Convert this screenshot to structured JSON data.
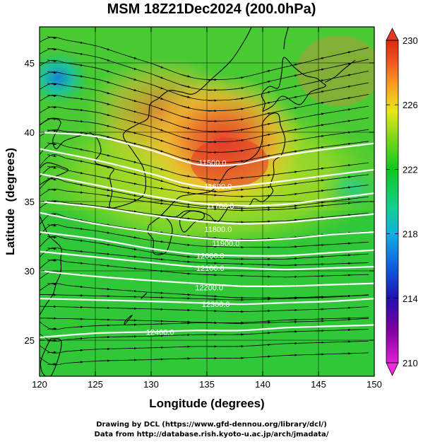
{
  "title": "MSM 18Z21Dec2024 (200.0hPa)",
  "credits": [
    "Drawing by DCL (https://www.gfd-dennou.org/library/dcl/)",
    "Data from http://database.rish.kyoto-u.ac.jp/arch/jmadata/"
  ],
  "chart_data": {
    "type": "heatmap",
    "title": "MSM 18Z21Dec2024 (200.0hPa)",
    "xlabel": "Longitude (degrees)",
    "ylabel": "Latitude  (degrees)",
    "xlim": [
      120,
      150
    ],
    "ylim": [
      22.4,
      47.6
    ],
    "x_ticks": [
      120,
      125,
      130,
      135,
      140,
      145,
      150
    ],
    "y_ticks": [
      25,
      30,
      35,
      40,
      45
    ],
    "colorbar": {
      "min": 210,
      "max": 230,
      "ticks": [
        210,
        214,
        218,
        222,
        226,
        230
      ]
    },
    "temperature_field_approx": [
      {
        "lon": 137,
        "lat": 40,
        "value": 228.5
      },
      {
        "lon": 131,
        "lat": 42,
        "value": 227.5
      },
      {
        "lon": 140,
        "lat": 36,
        "value": 226
      },
      {
        "lon": 124,
        "lat": 38,
        "value": 223.5
      },
      {
        "lon": 148,
        "lat": 38,
        "value": 222.5
      },
      {
        "lon": 122,
        "lat": 44,
        "value": 219
      }
    ],
    "contour_labels": [
      {
        "label": "11500.0",
        "lon": 135.5,
        "lat": 37.8
      },
      {
        "label": "11600.0",
        "lon": 136,
        "lat": 36.1
      },
      {
        "label": "11700.0",
        "lon": 136.2,
        "lat": 34.7
      },
      {
        "label": "11800.0",
        "lon": 136,
        "lat": 33.0
      },
      {
        "label": "11900.0",
        "lon": 136.7,
        "lat": 32.0
      },
      {
        "label": "12000.0",
        "lon": 135.3,
        "lat": 31.1
      },
      {
        "label": "12100.0",
        "lon": 135.3,
        "lat": 30.2
      },
      {
        "label": "12200.0",
        "lon": 135.2,
        "lat": 28.8
      },
      {
        "label": "12300.0",
        "lon": 135.8,
        "lat": 27.6
      },
      {
        "label": "12400.0",
        "lon": 130.8,
        "lat": 25.6
      }
    ],
    "contours": [
      {
        "value": 11500,
        "points": [
          [
            120,
            40.0
          ],
          [
            125,
            39.7
          ],
          [
            130,
            38.7
          ],
          [
            133,
            37.9
          ],
          [
            135,
            37.6
          ],
          [
            138,
            37.7
          ],
          [
            141,
            38.2
          ],
          [
            145,
            38.7
          ],
          [
            150,
            39.2
          ]
        ]
      },
      {
        "value": 11600,
        "points": [
          [
            120,
            38.8
          ],
          [
            125,
            38.0
          ],
          [
            130,
            37.0
          ],
          [
            133,
            36.3
          ],
          [
            136,
            36.0
          ],
          [
            140,
            36.3
          ],
          [
            145,
            36.8
          ],
          [
            150,
            37.3
          ]
        ]
      },
      {
        "value": 11700,
        "points": [
          [
            120,
            37.0
          ],
          [
            125,
            36.2
          ],
          [
            130,
            35.4
          ],
          [
            134,
            34.9
          ],
          [
            138,
            34.7
          ],
          [
            142,
            34.8
          ],
          [
            146,
            35.2
          ],
          [
            150,
            35.6
          ]
        ]
      },
      {
        "value": 11800,
        "points": [
          [
            120,
            35.0
          ],
          [
            125,
            34.6
          ],
          [
            130,
            34.0
          ],
          [
            134,
            33.6
          ],
          [
            138,
            33.4
          ],
          [
            142,
            33.5
          ],
          [
            146,
            33.8
          ],
          [
            150,
            34.1
          ]
        ]
      },
      {
        "value": 11900,
        "points": [
          [
            120,
            34.2
          ],
          [
            125,
            33.4
          ],
          [
            130,
            32.8
          ],
          [
            134,
            32.4
          ],
          [
            138,
            32.2
          ],
          [
            142,
            32.3
          ],
          [
            146,
            32.6
          ],
          [
            150,
            32.8
          ]
        ]
      },
      {
        "value": 12000,
        "points": [
          [
            120,
            32.8
          ],
          [
            125,
            32.3
          ],
          [
            130,
            31.6
          ],
          [
            134,
            31.2
          ],
          [
            138,
            31.1
          ],
          [
            142,
            31.1
          ],
          [
            146,
            31.3
          ],
          [
            150,
            31.5
          ]
        ]
      },
      {
        "value": 12100,
        "points": [
          [
            120,
            31.4
          ],
          [
            125,
            31.0
          ],
          [
            130,
            30.6
          ],
          [
            134,
            30.3
          ],
          [
            138,
            30.2
          ],
          [
            142,
            30.1
          ],
          [
            146,
            30.2
          ],
          [
            150,
            30.3
          ]
        ]
      },
      {
        "value": 12200,
        "points": [
          [
            120,
            30.0
          ],
          [
            125,
            29.6
          ],
          [
            130,
            29.3
          ],
          [
            134,
            29.1
          ],
          [
            138,
            28.9
          ],
          [
            142,
            28.9
          ],
          [
            146,
            29.0
          ],
          [
            150,
            29.1
          ]
        ]
      },
      {
        "value": 12300,
        "points": [
          [
            120,
            28.0
          ],
          [
            125,
            27.9
          ],
          [
            130,
            27.8
          ],
          [
            134,
            27.7
          ],
          [
            138,
            27.6
          ],
          [
            142,
            27.7
          ],
          [
            146,
            27.8
          ],
          [
            150,
            28.0
          ]
        ]
      },
      {
        "value": 12400,
        "points": [
          [
            120,
            25.2
          ],
          [
            125,
            25.5
          ],
          [
            130,
            25.6
          ],
          [
            134,
            25.7
          ],
          [
            138,
            25.7
          ],
          [
            142,
            25.9
          ],
          [
            146,
            26.0
          ],
          [
            150,
            26.1
          ]
        ]
      }
    ],
    "coastlines": [
      {
        "name": "honshu",
        "points": [
          [
            130.9,
            34.0
          ],
          [
            131.5,
            34.5
          ],
          [
            132.5,
            35.3
          ],
          [
            133.5,
            35.5
          ],
          [
            135.2,
            35.7
          ],
          [
            136.0,
            36.2
          ],
          [
            136.8,
            37.2
          ],
          [
            137.4,
            37.5
          ],
          [
            138.5,
            37.9
          ],
          [
            139.4,
            38.4
          ],
          [
            139.9,
            39.2
          ],
          [
            140.0,
            40.1
          ],
          [
            140.0,
            40.7
          ],
          [
            140.7,
            41.3
          ],
          [
            141.4,
            41.3
          ],
          [
            141.6,
            40.5
          ],
          [
            142.0,
            39.5
          ],
          [
            141.7,
            38.4
          ],
          [
            141.0,
            37.9
          ],
          [
            141.0,
            37.0
          ],
          [
            140.7,
            36.2
          ],
          [
            140.9,
            35.7
          ],
          [
            140.0,
            35.0
          ],
          [
            139.2,
            35.2
          ],
          [
            138.7,
            34.7
          ],
          [
            137.0,
            34.6
          ],
          [
            136.7,
            34.3
          ],
          [
            135.9,
            33.5
          ],
          [
            135.2,
            34.0
          ],
          [
            134.0,
            34.3
          ],
          [
            133.0,
            34.3
          ],
          [
            132.2,
            33.9
          ],
          [
            130.9,
            34.0
          ]
        ]
      },
      {
        "name": "hokkaido",
        "points": [
          [
            140.0,
            41.5
          ],
          [
            140.2,
            42.1
          ],
          [
            139.9,
            42.7
          ],
          [
            140.6,
            43.3
          ],
          [
            141.4,
            43.2
          ],
          [
            141.7,
            44.3
          ],
          [
            141.9,
            45.4
          ],
          [
            142.8,
            44.7
          ],
          [
            143.8,
            44.1
          ],
          [
            144.8,
            43.9
          ],
          [
            145.3,
            43.6
          ],
          [
            145.6,
            43.3
          ],
          [
            144.3,
            42.9
          ],
          [
            143.3,
            42.0
          ],
          [
            141.8,
            42.6
          ],
          [
            140.9,
            41.9
          ],
          [
            140.0,
            41.5
          ]
        ]
      },
      {
        "name": "kyushu",
        "points": [
          [
            129.8,
            33.3
          ],
          [
            130.9,
            33.9
          ],
          [
            131.6,
            33.6
          ],
          [
            131.9,
            32.9
          ],
          [
            131.5,
            31.6
          ],
          [
            131.0,
            31.2
          ],
          [
            130.2,
            31.3
          ],
          [
            130.2,
            32.2
          ],
          [
            129.7,
            32.8
          ],
          [
            129.8,
            33.3
          ]
        ]
      },
      {
        "name": "shikoku",
        "points": [
          [
            132.6,
            33.8
          ],
          [
            133.5,
            34.3
          ],
          [
            134.6,
            34.2
          ],
          [
            134.7,
            33.8
          ],
          [
            133.9,
            33.5
          ],
          [
            133.0,
            32.8
          ],
          [
            132.6,
            33.3
          ],
          [
            132.6,
            33.8
          ]
        ]
      },
      {
        "name": "korea",
        "points": [
          [
            124.5,
            40.0
          ],
          [
            125.2,
            39.5
          ],
          [
            125.5,
            38.6
          ],
          [
            125.0,
            37.8
          ],
          [
            126.6,
            37.4
          ],
          [
            126.3,
            36.8
          ],
          [
            126.5,
            35.7
          ],
          [
            126.3,
            34.6
          ],
          [
            127.4,
            34.7
          ],
          [
            128.7,
            35.1
          ],
          [
            129.4,
            35.6
          ],
          [
            129.5,
            36.7
          ],
          [
            129.2,
            37.6
          ],
          [
            128.4,
            38.6
          ],
          [
            127.5,
            39.8
          ],
          [
            128.6,
            40.5
          ],
          [
            129.7,
            41.0
          ],
          [
            129.9,
            42.0
          ],
          [
            130.6,
            42.4
          ]
        ]
      },
      {
        "name": "asia-mainland",
        "points": [
          [
            130.6,
            42.4
          ],
          [
            131.6,
            43.0
          ],
          [
            132.7,
            42.9
          ],
          [
            133.9,
            42.8
          ],
          [
            135.5,
            43.9
          ],
          [
            137.2,
            45.2
          ],
          [
            138.5,
            46.8
          ],
          [
            139.0,
            47.6
          ]
        ]
      },
      {
        "name": "china-coast",
        "points": [
          [
            124.3,
            39.9
          ],
          [
            122.3,
            39.4
          ],
          [
            121.5,
            38.8
          ],
          [
            121.2,
            39.5
          ],
          [
            121.9,
            40.7
          ],
          [
            121.0,
            41.0
          ],
          [
            120.0,
            40.5
          ]
        ]
      },
      {
        "name": "shandong-coast",
        "points": [
          [
            120.0,
            36.2
          ],
          [
            120.8,
            36.6
          ],
          [
            122.5,
            37.2
          ],
          [
            122.0,
            37.5
          ],
          [
            120.7,
            37.8
          ],
          [
            120.0,
            37.4
          ]
        ]
      },
      {
        "name": "jiangsu-zhejiang",
        "points": [
          [
            120.0,
            34.0
          ],
          [
            120.8,
            32.6
          ],
          [
            121.9,
            31.7
          ],
          [
            121.9,
            30.9
          ],
          [
            121.9,
            29.9
          ],
          [
            121.5,
            29.1
          ],
          [
            121.2,
            28.3
          ],
          [
            120.6,
            27.6
          ],
          [
            120.0,
            26.8
          ]
        ]
      },
      {
        "name": "taiwan",
        "points": [
          [
            121.0,
            25.1
          ],
          [
            121.9,
            25.0
          ],
          [
            121.8,
            24.0
          ],
          [
            121.0,
            22.4
          ],
          [
            120.3,
            22.6
          ],
          [
            120.1,
            23.4
          ],
          [
            120.5,
            24.3
          ],
          [
            121.0,
            25.1
          ]
        ]
      },
      {
        "name": "fujian-coast",
        "points": [
          [
            120.0,
            26.6
          ],
          [
            119.6,
            25.8
          ]
        ]
      },
      {
        "name": "sakhalin",
        "points": [
          [
            141.9,
            46.0
          ],
          [
            142.0,
            46.7
          ],
          [
            142.3,
            47.6
          ]
        ]
      },
      {
        "name": "kuril",
        "points": [
          [
            145.6,
            43.6
          ],
          [
            146.5,
            44.0
          ],
          [
            147.2,
            44.5
          ],
          [
            148.3,
            45.2
          ]
        ]
      },
      {
        "name": "okinawa",
        "points": [
          [
            127.6,
            26.1
          ],
          [
            128.3,
            26.8
          ],
          [
            127.7,
            26.4
          ],
          [
            127.6,
            26.1
          ]
        ]
      },
      {
        "name": "amami",
        "points": [
          [
            129.1,
            28.0
          ],
          [
            129.6,
            28.4
          ]
        ]
      }
    ]
  }
}
